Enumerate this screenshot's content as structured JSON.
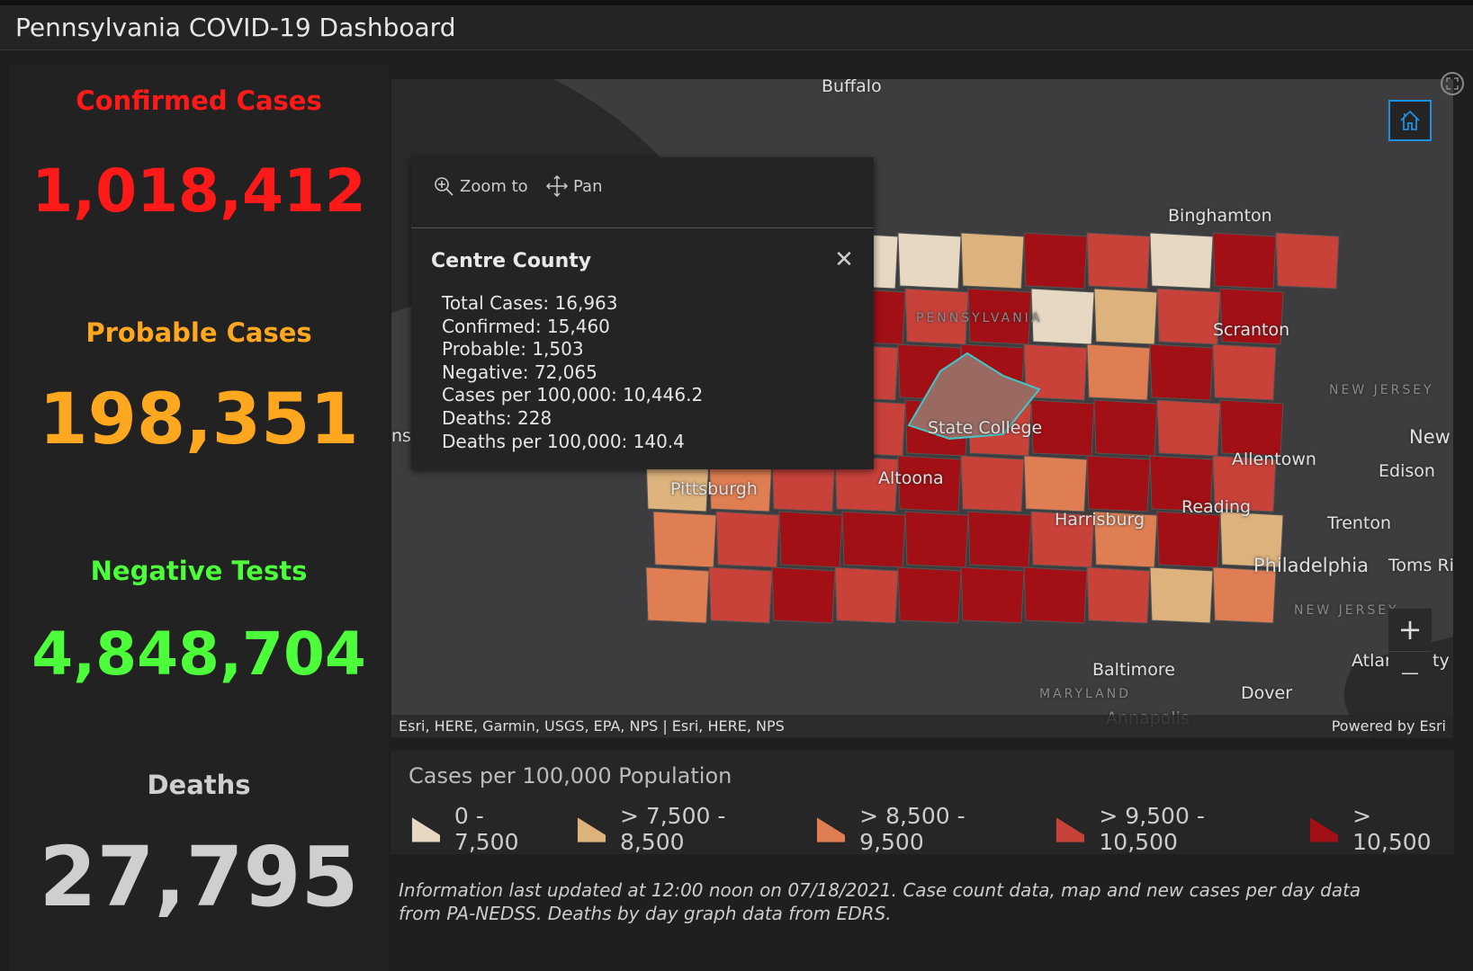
{
  "header": {
    "title": "Pennsylvania COVID-19 Dashboard"
  },
  "stats": [
    {
      "label": "Confirmed Cases",
      "value": "1,018,412",
      "color": "#ff1a1a"
    },
    {
      "label": "Probable Cases",
      "value": "198,351",
      "color": "#ffa71e"
    },
    {
      "label": "Negative Tests",
      "value": "4,848,704",
      "color": "#4cff3a"
    },
    {
      "label": "Deaths",
      "value": "27,795",
      "color": "#cfcfcf"
    }
  ],
  "popup": {
    "zoom_label": "Zoom to",
    "pan_label": "Pan",
    "title": "Centre County",
    "close": "✕",
    "lines": [
      "Total Cases: 16,963",
      "Confirmed: 15,460",
      "Probable: 1,503",
      "Negative: 72,065",
      "Cases per 100,000: 10,446.2",
      "Deaths: 228",
      "Deaths per 100,000: 140.4"
    ]
  },
  "map": {
    "labels": [
      "Buffalo",
      "Binghamton",
      "Scranton",
      "State College",
      "Altoona",
      "Pittsburgh",
      "Allentown",
      "Harrisburg",
      "Reading",
      "Trenton",
      "Philadelphia",
      "Edison",
      "New",
      "Toms Ri",
      "Baltimore",
      "Dover",
      "Annapolis",
      "Atlar",
      "ty",
      "nsf"
    ],
    "region_labels": [
      "PENNSYLVANIA",
      "NEW JERSEY",
      "NEW JERSEY",
      "MARYLAND"
    ],
    "attribution": "Esri, HERE, Garmin, USGS, EPA, NPS | Esri, HERE, NPS",
    "powered": "Powered by Esri",
    "zoom_in": "+",
    "zoom_out": "—"
  },
  "legend": {
    "title": "Cases per 100,000 Population",
    "items": [
      {
        "label": "0 - 7,500",
        "color": "#e6d8c3"
      },
      {
        "label": "> 7,500 - 8,500",
        "color": "#ddb27c"
      },
      {
        "label": "> 8,500 - 9,500",
        "color": "#df7e52"
      },
      {
        "label": "> 9,500 - 10,500",
        "color": "#c9423a"
      },
      {
        "label": "> 10,500",
        "color": "#a20f14"
      }
    ]
  },
  "footer": {
    "text": "Information last updated at 12:00 noon on 07/18/2021. Case count data, map and new cases per day data from PA-NEDSS.  Deaths by day graph data from EDRS."
  }
}
